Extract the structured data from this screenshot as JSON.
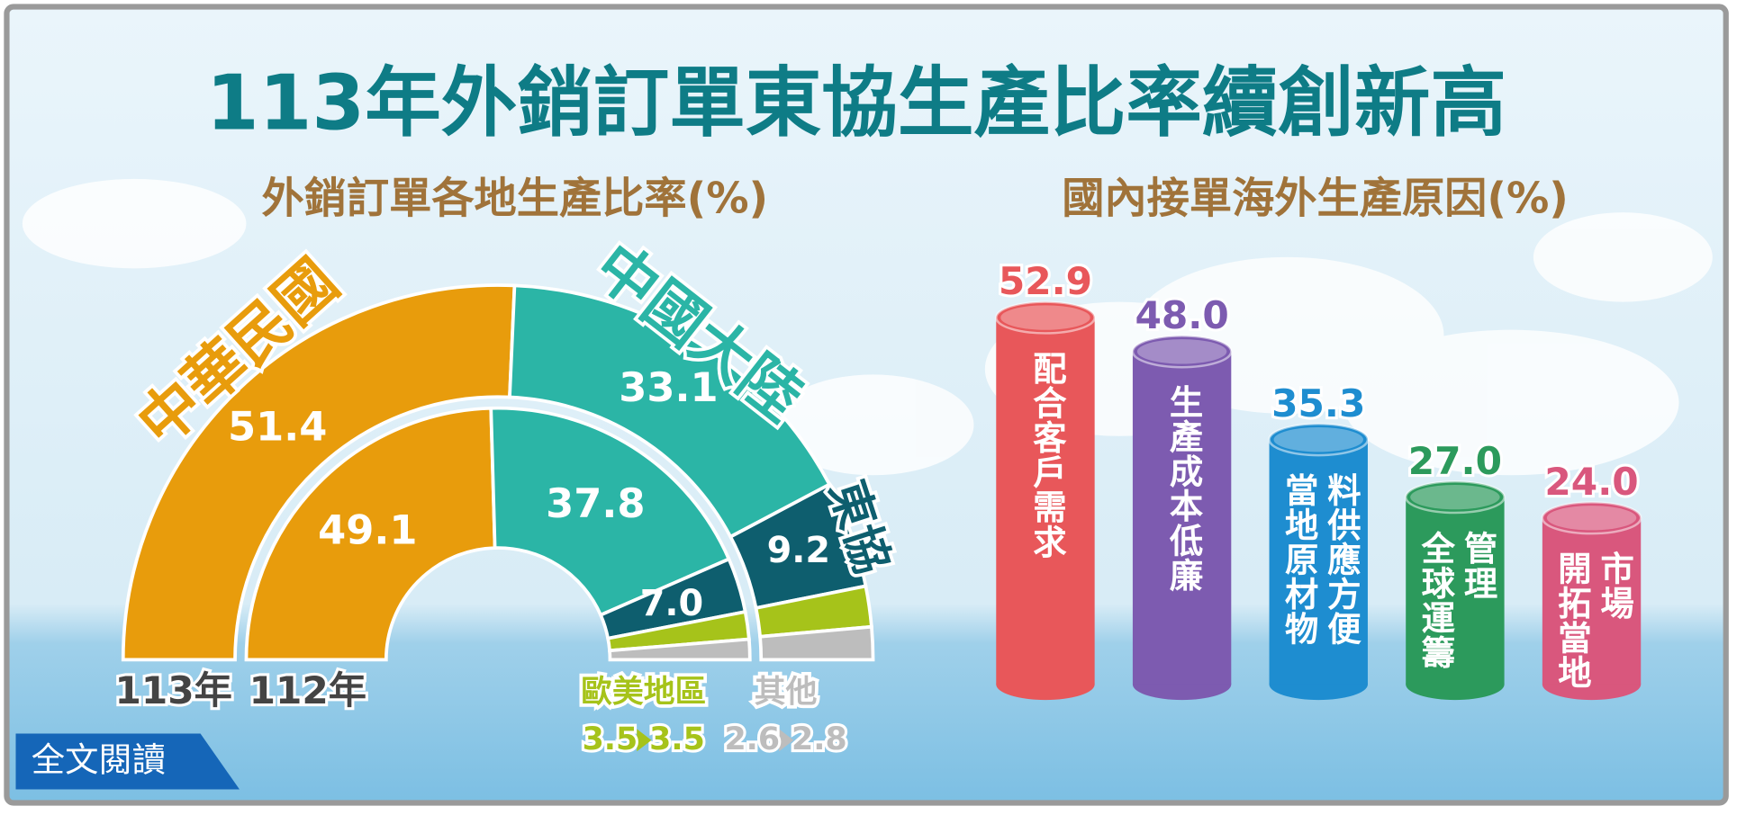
{
  "title": "113年外銷訂單東協生產比率續創新高",
  "button": "全文閱讀",
  "chart_data": [
    {
      "type": "pie",
      "title": "外銷訂單各地生產比率(%)",
      "categories": [
        "中華民國",
        "中國大陸",
        "東協",
        "歐美地區",
        "其他"
      ],
      "colors": [
        "#E89C0C",
        "#2BB5A6",
        "#0E5E6E",
        "#A6C31A",
        "#BDBDBD"
      ],
      "series": [
        {
          "name": "113年",
          "values": [
            51.4,
            33.1,
            9.2,
            3.5,
            2.8
          ],
          "value_labels": [
            "51.4",
            "33.1",
            "9.2",
            "3.5",
            "2.8"
          ]
        },
        {
          "name": "112年",
          "values": [
            49.1,
            37.8,
            7.0,
            3.5,
            2.6
          ],
          "value_labels": [
            "49.1",
            "37.8",
            "7.0",
            "3.5",
            "2.6"
          ]
        }
      ]
    },
    {
      "type": "bar",
      "title": "國內接單海外生產原因(%)",
      "categories": [
        "配合客戶需求",
        "生產成本低廉",
        "當地原材物料供應方便",
        "全球運籌管理",
        "開拓當地市場"
      ],
      "values": [
        52.9,
        48.0,
        35.3,
        27.0,
        24.0
      ],
      "value_labels": [
        "52.9",
        "48.0",
        "35.3",
        "27.0",
        "24.0"
      ],
      "colors": [
        "#E8575A",
        "#7D5BB0",
        "#1E8DD0",
        "#2C9A5C",
        "#D9577D"
      ]
    }
  ]
}
